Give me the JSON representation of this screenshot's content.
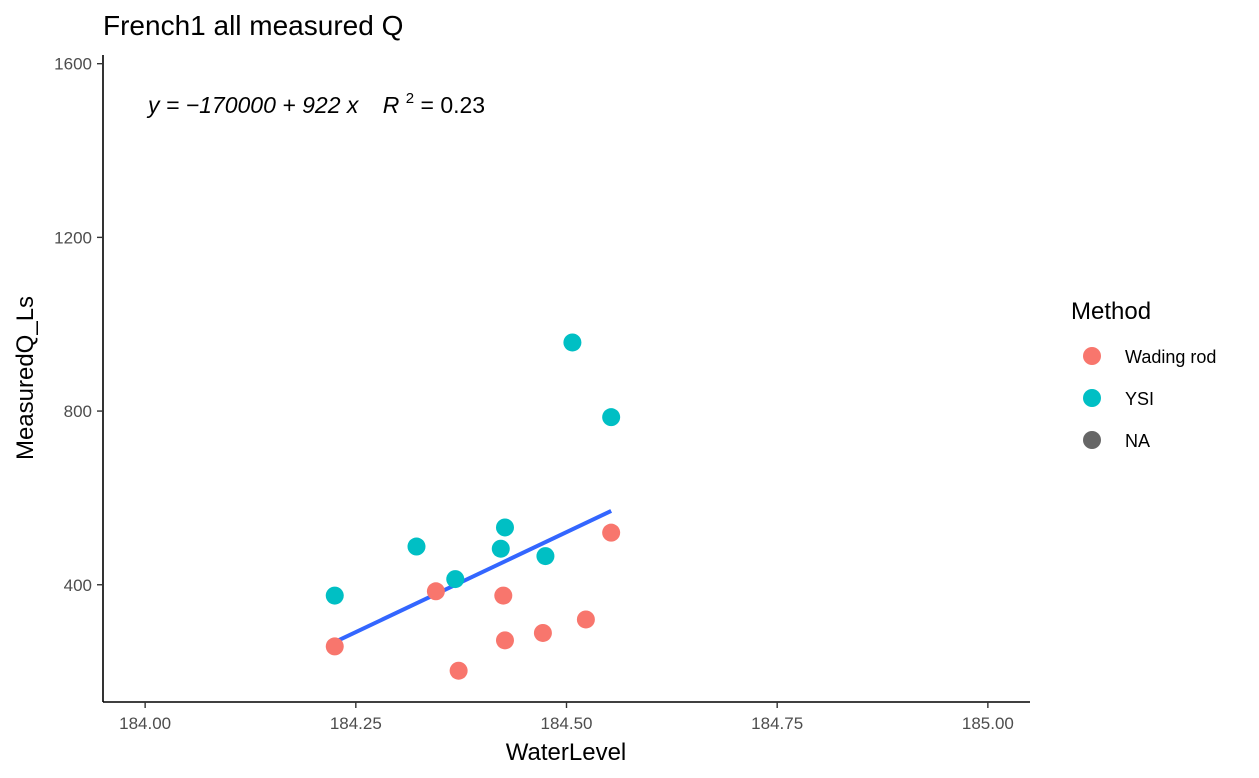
{
  "chart_data": {
    "type": "scatter",
    "title": "French1 all measured Q",
    "xlabel": "WaterLevel",
    "ylabel": "MeasuredQ_Ls",
    "xlim": [
      183.95,
      185.05
    ],
    "ylim": [
      130,
      1620
    ],
    "x_ticks": [
      {
        "value": 184.0,
        "label": "184.00"
      },
      {
        "value": 184.25,
        "label": "184.25"
      },
      {
        "value": 184.5,
        "label": "184.50"
      },
      {
        "value": 184.75,
        "label": "184.75"
      },
      {
        "value": 185.0,
        "label": "185.00"
      }
    ],
    "y_ticks": [
      {
        "value": 400,
        "label": "400"
      },
      {
        "value": 800,
        "label": "800"
      },
      {
        "value": 1200,
        "label": "1200"
      },
      {
        "value": 1600,
        "label": "1600"
      }
    ],
    "grid": false,
    "legend": {
      "title": "Method",
      "position": "right",
      "entries": [
        {
          "label": "Wading rod",
          "color": "#F8766D"
        },
        {
          "label": "YSI",
          "color": "#00BFC4"
        },
        {
          "label": "NA",
          "color": "#666666"
        }
      ]
    },
    "series": [
      {
        "name": "Wading rod",
        "color": "#F8766D",
        "points": [
          {
            "x": 184.225,
            "y": 258
          },
          {
            "x": 184.345,
            "y": 385
          },
          {
            "x": 184.372,
            "y": 202
          },
          {
            "x": 184.425,
            "y": 375
          },
          {
            "x": 184.427,
            "y": 272
          },
          {
            "x": 184.472,
            "y": 289
          },
          {
            "x": 184.523,
            "y": 320
          },
          {
            "x": 184.553,
            "y": 520
          }
        ]
      },
      {
        "name": "YSI",
        "color": "#00BFC4",
        "points": [
          {
            "x": 184.225,
            "y": 375
          },
          {
            "x": 184.322,
            "y": 488
          },
          {
            "x": 184.368,
            "y": 413
          },
          {
            "x": 184.422,
            "y": 483
          },
          {
            "x": 184.427,
            "y": 532
          },
          {
            "x": 184.475,
            "y": 466
          },
          {
            "x": 184.507,
            "y": 958
          },
          {
            "x": 184.553,
            "y": 786
          }
        ]
      }
    ],
    "fit_line": {
      "color": "#3366FF",
      "x": [
        184.225,
        184.553
      ],
      "y": [
        268,
        570
      ]
    },
    "annotation": {
      "equation_text": "y = −170000 + 922 x",
      "r2_label": "R",
      "r2_superscript": "2",
      "r2_value_text": " = 0.23"
    }
  }
}
